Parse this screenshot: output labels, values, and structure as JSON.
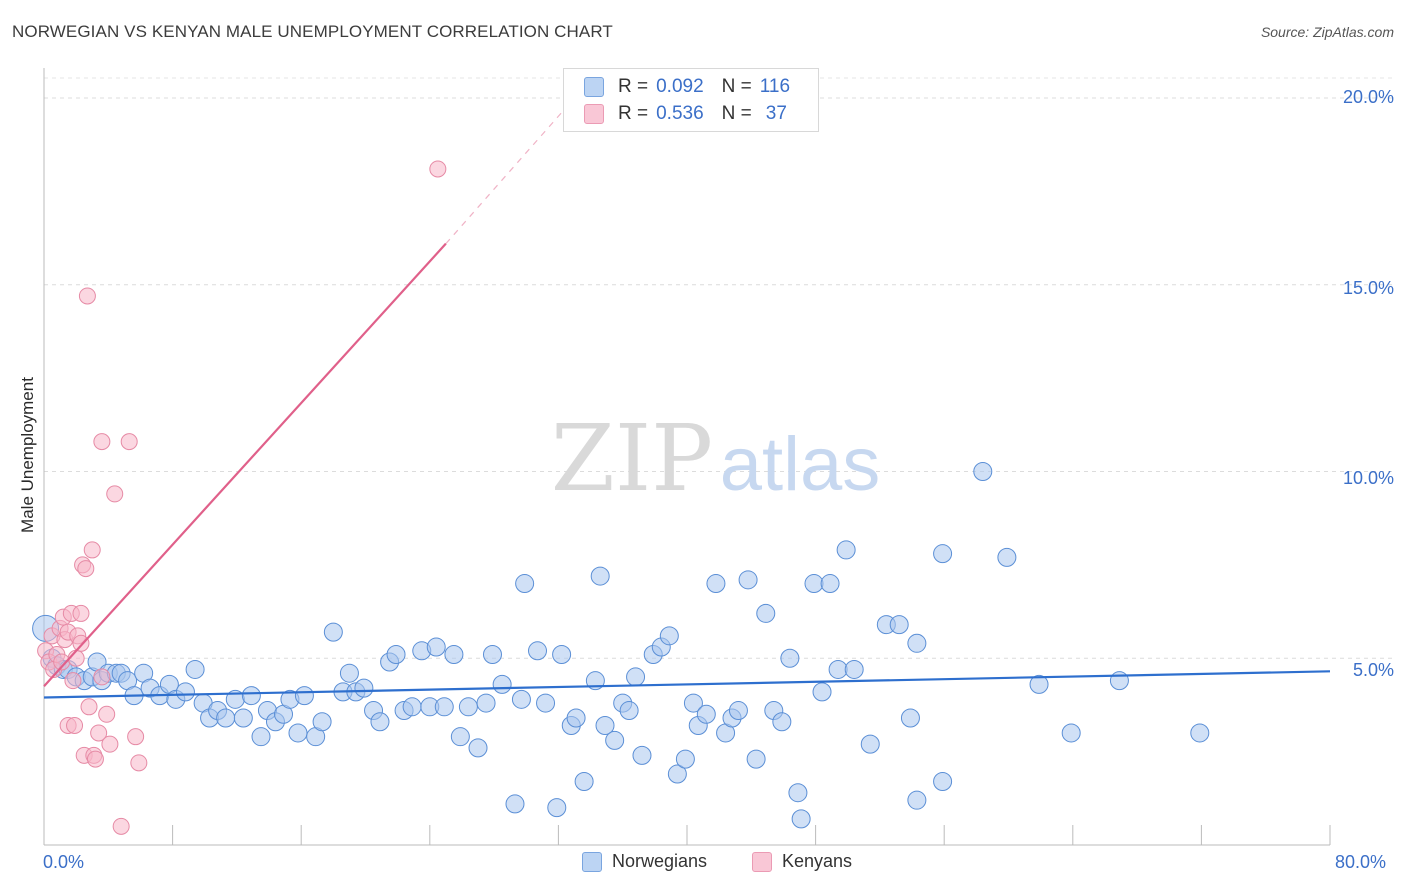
{
  "title": "NORWEGIAN VS KENYAN MALE UNEMPLOYMENT CORRELATION CHART",
  "source": "Source: ZipAtlas.com",
  "watermark": {
    "zip": "ZIP",
    "atlas": "atlas"
  },
  "legend_top": {
    "rows": [
      {
        "r_label": "R =",
        "r_value": "0.092",
        "n_label": "N =",
        "n_value": "116"
      },
      {
        "r_label": "R =",
        "r_value": "0.536",
        "n_label": "N =",
        "n_value": "37"
      }
    ]
  },
  "legend_bottom": [
    "Norwegians",
    "Kenyans"
  ],
  "colors": {
    "blue_fill": "#a9c7ef",
    "blue_stroke": "#5b8fd6",
    "blue_line": "#2e6fce",
    "pink_fill": "#f7b6c8",
    "pink_stroke": "#e68aa5",
    "pink_line": "#e0608a",
    "axis_text": "#3b6fc8",
    "grid": "#dcdcdc"
  },
  "chart_data": {
    "type": "scatter",
    "title": "NORWEGIAN VS KENYAN MALE UNEMPLOYMENT CORRELATION CHART",
    "xlabel": "",
    "ylabel": "Male Unemployment",
    "xlim": [
      0,
      80
    ],
    "ylim": [
      0,
      20
    ],
    "x_tick_labels": [
      "0.0%",
      "80.0%"
    ],
    "y_ticks": [
      5,
      10,
      15,
      20
    ],
    "y_tick_labels": [
      "5.0%",
      "10.0%",
      "15.0%",
      "20.0%"
    ],
    "series": [
      {
        "name": "Norwegians",
        "r": 0.092,
        "n": 116,
        "trend": {
          "x": [
            0,
            80
          ],
          "y": [
            3.95,
            4.65
          ]
        },
        "points": [
          [
            0.1,
            5.8
          ],
          [
            0.5,
            5.0
          ],
          [
            0.8,
            4.8
          ],
          [
            1.2,
            4.7
          ],
          [
            1.5,
            4.7
          ],
          [
            2.0,
            4.5
          ],
          [
            2.5,
            4.4
          ],
          [
            3.0,
            4.5
          ],
          [
            3.3,
            4.9
          ],
          [
            3.6,
            4.4
          ],
          [
            4.0,
            4.6
          ],
          [
            4.5,
            4.6
          ],
          [
            4.8,
            4.6
          ],
          [
            5.2,
            4.4
          ],
          [
            5.6,
            4.0
          ],
          [
            6.2,
            4.6
          ],
          [
            6.6,
            4.2
          ],
          [
            7.2,
            4.0
          ],
          [
            7.8,
            4.3
          ],
          [
            8.2,
            3.9
          ],
          [
            8.8,
            4.1
          ],
          [
            9.4,
            4.7
          ],
          [
            9.9,
            3.8
          ],
          [
            10.3,
            3.4
          ],
          [
            10.8,
            3.6
          ],
          [
            11.3,
            3.4
          ],
          [
            11.9,
            3.9
          ],
          [
            12.4,
            3.4
          ],
          [
            12.9,
            4.0
          ],
          [
            13.5,
            2.9
          ],
          [
            13.9,
            3.6
          ],
          [
            14.4,
            3.3
          ],
          [
            14.9,
            3.5
          ],
          [
            15.3,
            3.9
          ],
          [
            15.8,
            3.0
          ],
          [
            16.2,
            4.0
          ],
          [
            16.9,
            2.9
          ],
          [
            17.3,
            3.3
          ],
          [
            18.0,
            5.7
          ],
          [
            18.6,
            4.1
          ],
          [
            19.0,
            4.6
          ],
          [
            19.4,
            4.1
          ],
          [
            19.9,
            4.2
          ],
          [
            20.5,
            3.6
          ],
          [
            20.9,
            3.3
          ],
          [
            21.5,
            4.9
          ],
          [
            21.9,
            5.1
          ],
          [
            22.4,
            3.6
          ],
          [
            22.9,
            3.7
          ],
          [
            23.5,
            5.2
          ],
          [
            24.0,
            3.7
          ],
          [
            24.4,
            5.3
          ],
          [
            24.9,
            3.7
          ],
          [
            25.5,
            5.1
          ],
          [
            25.9,
            2.9
          ],
          [
            26.4,
            3.7
          ],
          [
            27.0,
            2.6
          ],
          [
            27.5,
            3.8
          ],
          [
            27.9,
            5.1
          ],
          [
            28.5,
            4.3
          ],
          [
            29.3,
            1.1
          ],
          [
            29.7,
            3.9
          ],
          [
            29.9,
            7.0
          ],
          [
            30.7,
            5.2
          ],
          [
            31.2,
            3.8
          ],
          [
            31.9,
            1.0
          ],
          [
            32.2,
            5.1
          ],
          [
            32.8,
            3.2
          ],
          [
            33.1,
            3.4
          ],
          [
            33.6,
            1.7
          ],
          [
            34.3,
            4.4
          ],
          [
            34.6,
            7.2
          ],
          [
            34.9,
            3.2
          ],
          [
            35.5,
            2.8
          ],
          [
            36.0,
            3.8
          ],
          [
            36.4,
            3.6
          ],
          [
            36.8,
            4.5
          ],
          [
            37.2,
            2.4
          ],
          [
            37.9,
            5.1
          ],
          [
            38.4,
            5.3
          ],
          [
            38.9,
            5.6
          ],
          [
            39.4,
            1.9
          ],
          [
            39.9,
            2.3
          ],
          [
            40.4,
            3.8
          ],
          [
            40.7,
            3.2
          ],
          [
            41.2,
            3.5
          ],
          [
            41.8,
            7.0
          ],
          [
            42.4,
            3.0
          ],
          [
            42.8,
            3.4
          ],
          [
            43.2,
            3.6
          ],
          [
            43.8,
            7.1
          ],
          [
            44.3,
            2.3
          ],
          [
            44.9,
            6.2
          ],
          [
            45.4,
            3.6
          ],
          [
            45.9,
            3.3
          ],
          [
            46.4,
            5.0
          ],
          [
            46.9,
            1.4
          ],
          [
            47.1,
            0.7
          ],
          [
            47.9,
            7.0
          ],
          [
            48.4,
            4.1
          ],
          [
            48.9,
            7.0
          ],
          [
            49.4,
            4.7
          ],
          [
            49.9,
            7.9
          ],
          [
            50.4,
            4.7
          ],
          [
            51.4,
            2.7
          ],
          [
            52.4,
            5.9
          ],
          [
            53.2,
            5.9
          ],
          [
            53.9,
            3.4
          ],
          [
            54.3,
            5.4
          ],
          [
            55.9,
            7.8
          ],
          [
            55.9,
            1.7
          ],
          [
            58.4,
            10.0
          ],
          [
            59.9,
            7.7
          ],
          [
            61.9,
            4.3
          ],
          [
            63.9,
            3.0
          ],
          [
            66.9,
            4.4
          ],
          [
            71.9,
            3.0
          ],
          [
            54.3,
            1.2
          ]
        ]
      },
      {
        "name": "Kenyans",
        "r": 0.536,
        "n": 37,
        "trend": {
          "x": [
            0,
            25
          ],
          "y": [
            4.25,
            16.1
          ],
          "dashed_extension": {
            "x": [
              25,
              33
            ],
            "y": [
              16.1,
              20.0
            ]
          }
        },
        "points": [
          [
            0.1,
            5.2
          ],
          [
            0.3,
            4.9
          ],
          [
            0.5,
            5.6
          ],
          [
            0.6,
            4.7
          ],
          [
            0.8,
            5.1
          ],
          [
            1.0,
            5.8
          ],
          [
            1.1,
            4.9
          ],
          [
            1.2,
            6.1
          ],
          [
            1.3,
            5.5
          ],
          [
            1.5,
            5.7
          ],
          [
            1.5,
            3.2
          ],
          [
            1.7,
            6.2
          ],
          [
            1.8,
            4.4
          ],
          [
            1.9,
            3.2
          ],
          [
            2.0,
            5.0
          ],
          [
            2.1,
            5.6
          ],
          [
            2.3,
            5.4
          ],
          [
            2.3,
            6.2
          ],
          [
            2.4,
            7.5
          ],
          [
            2.5,
            2.4
          ],
          [
            2.6,
            7.4
          ],
          [
            2.7,
            14.7
          ],
          [
            2.8,
            3.7
          ],
          [
            3.0,
            7.9
          ],
          [
            3.1,
            2.4
          ],
          [
            3.2,
            2.3
          ],
          [
            3.4,
            3.0
          ],
          [
            3.6,
            4.5
          ],
          [
            3.6,
            10.8
          ],
          [
            3.9,
            3.5
          ],
          [
            4.1,
            2.7
          ],
          [
            4.4,
            9.4
          ],
          [
            4.8,
            0.5
          ],
          [
            5.3,
            10.8
          ],
          [
            5.7,
            2.9
          ],
          [
            5.9,
            2.2
          ],
          [
            24.5,
            18.1
          ]
        ]
      }
    ]
  }
}
